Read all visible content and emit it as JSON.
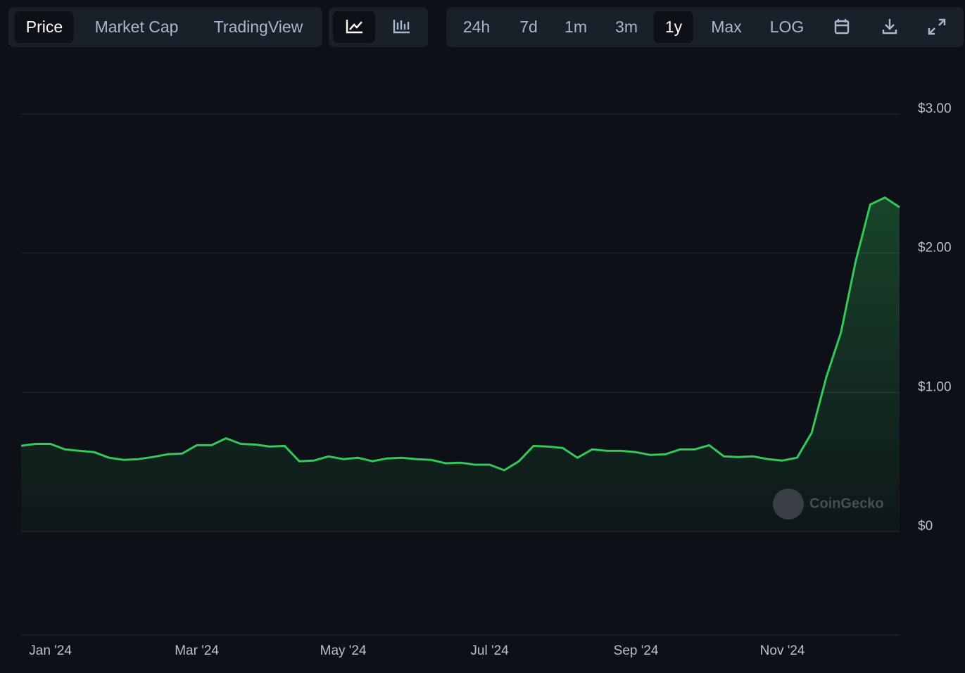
{
  "toolbar": {
    "tabs": [
      "Price",
      "Market Cap",
      "TradingView"
    ],
    "ranges": [
      "24h",
      "7d",
      "1m",
      "3m",
      "1y",
      "Max",
      "LOG"
    ]
  },
  "chart_data": {
    "type": "line",
    "watermark": "CoinGecko",
    "categories": [
      null,
      null,
      "Jan '24",
      null,
      null,
      null,
      null,
      null,
      null,
      null,
      null,
      null,
      "Mar '24",
      null,
      null,
      null,
      null,
      null,
      null,
      null,
      null,
      null,
      "May '24",
      null,
      null,
      null,
      null,
      null,
      null,
      null,
      null,
      null,
      "Jul '24",
      null,
      null,
      null,
      null,
      null,
      null,
      null,
      null,
      null,
      "Sep '24",
      null,
      null,
      null,
      null,
      null,
      null,
      null,
      null,
      null,
      "Nov '24",
      null,
      null,
      null,
      null,
      null,
      null,
      null,
      null
    ],
    "series": [
      {
        "name": "Price",
        "color": "#34c759",
        "values": [
          0.616,
          0.63,
          0.63,
          0.59,
          0.58,
          0.57,
          0.53,
          0.515,
          0.52,
          0.535,
          0.555,
          0.56,
          0.62,
          0.62,
          0.67,
          0.63,
          0.625,
          0.61,
          0.615,
          0.505,
          0.51,
          0.54,
          0.52,
          0.53,
          0.505,
          0.525,
          0.53,
          0.52,
          0.515,
          0.49,
          0.495,
          0.48,
          0.48,
          0.44,
          0.505,
          0.615,
          0.61,
          0.6,
          0.53,
          0.59,
          0.58,
          0.58,
          0.57,
          0.55,
          0.555,
          0.59,
          0.59,
          0.62,
          0.54,
          0.535,
          0.54,
          0.52,
          0.51,
          0.53,
          0.71,
          1.11,
          1.43,
          1.94,
          2.35,
          2.4,
          2.33
        ]
      }
    ],
    "ylim": [
      0,
      3
    ],
    "yticks": [
      {
        "value": 0,
        "label": "$0"
      },
      {
        "value": 1,
        "label": "$1.00"
      },
      {
        "value": 2,
        "label": "$2.00"
      },
      {
        "value": 3,
        "label": "$3.00"
      }
    ],
    "grid": true
  }
}
